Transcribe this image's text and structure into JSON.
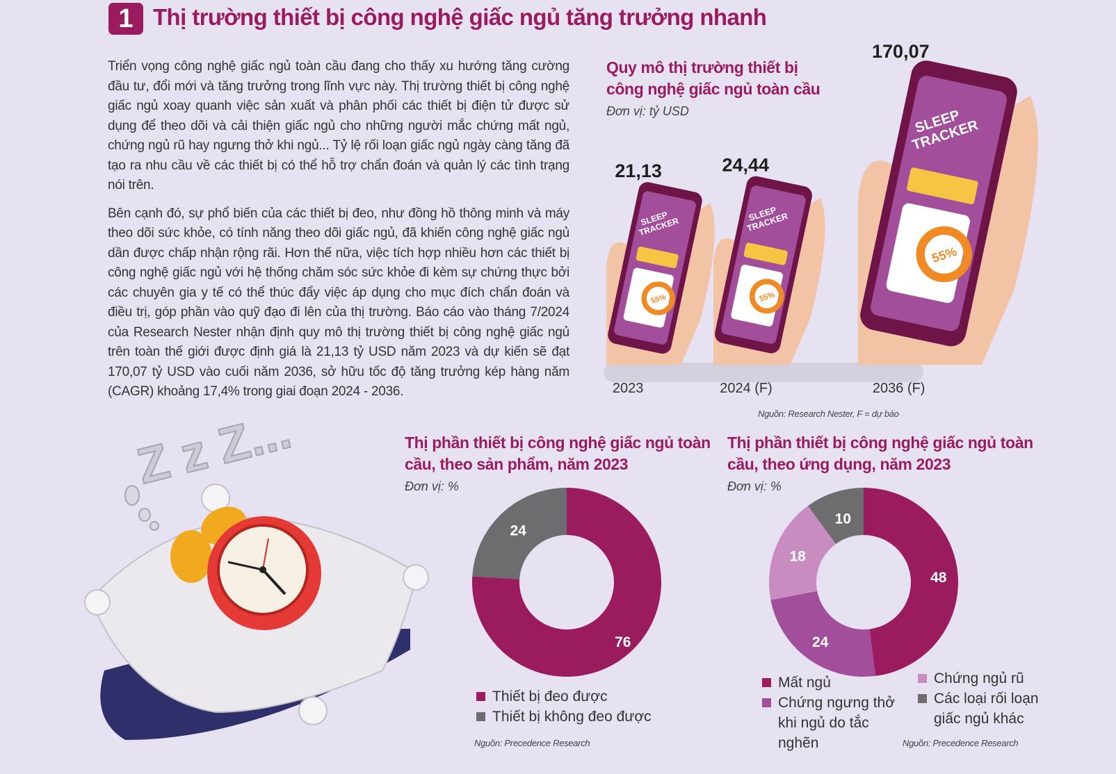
{
  "header": {
    "number": "1",
    "title": "Thị trường thiết bị công nghệ giấc ngủ tăng trưởng nhanh"
  },
  "article": {
    "paragraphs": [
      "Triển vọng công nghệ giấc ngủ toàn cầu đang cho thấy xu hướng tăng cường đầu tư, đổi mới và tăng trưởng trong lĩnh vực này. Thị trường thiết bị công nghệ giấc ngủ xoay quanh việc sản xuất và phân phối các thiết bị điện tử được sử dụng để theo dõi và cải thiện giấc ngủ cho những người mắc chứng mất ngủ, chứng ngủ rũ hay ngưng thở khi ngủ... Tỷ lệ rối loạn giấc ngủ ngày càng tăng đã tạo ra nhu cầu về các thiết bị có thể hỗ trợ chẩn đoán và quản lý các tình trạng nói trên.",
      "Bên cạnh đó, sự phổ biến của các thiết bị đeo, như đồng hồ thông minh và máy theo dõi sức khỏe, có tính năng theo dõi giấc ngủ, đã khiến công nghệ giấc ngủ dần được chấp nhận rộng rãi. Hơn thế nữa, việc tích hợp nhiều hơn các thiết bị công nghệ giấc ngủ với hệ thống chăm sóc sức khỏe đi kèm sự chứng thực bởi các chuyên gia y tế có thể thúc đẩy việc áp dụng cho mục đích chẩn đoán và điều trị, góp phần vào quỹ đạo đi lên của thị trường. Báo cáo vào tháng 7/2024 của Research Nester nhận định quy mô thị trường thiết bị công nghệ giấc ngủ trên toàn thế giới được định giá là 21,13 tỷ USD năm 2023 và dự kiến sẽ đạt 170,07 tỷ USD vào cuối năm 2036, sở hữu tốc độ tăng trưởng kép hàng năm (CAGR) khoảng 17,4% trong giai đoạn 2024 - 2036."
    ]
  },
  "phone_screen": {
    "title_line1": "SLEEP",
    "title_line2": "TRACKER",
    "percent": "55%"
  },
  "decor": {
    "zzz": "Z z Z..."
  },
  "colors": {
    "accent": "#9b1c5e",
    "purple_mid": "#a24e9b",
    "lilac": "#c88cc0",
    "gray": "#6d6d6f",
    "background": "#e6e2f1"
  },
  "chart_data": [
    {
      "type": "bar",
      "title": "Quy mô thị trường thiết bị công nghệ giấc ngủ toàn cầu",
      "unit": "Đơn vị: tỷ USD",
      "categories": [
        "2023",
        "2024 (F)",
        "2036 (F)"
      ],
      "values": [
        21.13,
        24.44,
        170.07
      ],
      "value_labels": [
        "21,13",
        "24,44",
        "170,07"
      ],
      "source": "Nguồn: Research Nester, F = dự báo"
    },
    {
      "type": "pie",
      "title": "Thị phần thiết bị công nghệ giấc ngủ toàn cầu, theo sản phẩm, năm 2023",
      "unit": "Đơn vị: %",
      "slices": [
        {
          "label": "Thiết bị đeo được",
          "value": 76,
          "color": "#9b1c5e"
        },
        {
          "label": "Thiết bị không đeo được",
          "value": 24,
          "color": "#6d6d6f"
        }
      ],
      "source": "Nguồn: Precedence Research"
    },
    {
      "type": "pie",
      "title": "Thị phần thiết bị công nghệ giấc ngủ toàn cầu, theo ứng dụng, năm 2023",
      "unit": "Đơn vị: %",
      "slices": [
        {
          "label": "Mất ngủ",
          "value": 48,
          "color": "#9b1c5e"
        },
        {
          "label": "Chứng ngưng thở khi ngủ do tắc nghẽn",
          "value": 24,
          "color": "#a24e9b"
        },
        {
          "label": "Chứng ngủ rũ",
          "value": 18,
          "color": "#c88cc0"
        },
        {
          "label": "Các loại rối loạn giấc ngủ khác",
          "value": 10,
          "color": "#6d6d6f"
        }
      ],
      "source": "Nguồn: Precedence Research"
    }
  ]
}
